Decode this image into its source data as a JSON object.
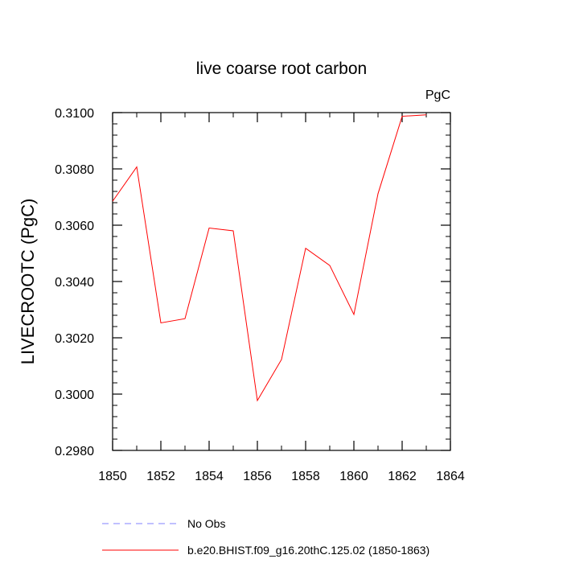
{
  "chart_data": {
    "type": "line",
    "title": "live coarse root carbon",
    "units_label": "PgC",
    "ylabel": "LIVECROOTC  (PgC)",
    "xlabel": "",
    "xlim": [
      1850,
      1864
    ],
    "ylim": [
      0.298,
      0.31
    ],
    "x_ticks": [
      1850,
      1852,
      1854,
      1856,
      1858,
      1860,
      1862,
      1864
    ],
    "x_tick_labels": [
      "1850",
      "1852",
      "1854",
      "1856",
      "1858",
      "1860",
      "1862",
      "1864"
    ],
    "y_ticks": [
      0.298,
      0.3,
      0.302,
      0.304,
      0.306,
      0.308,
      0.31
    ],
    "y_tick_labels": [
      "0.2980",
      "0.3000",
      "0.3020",
      "0.3040",
      "0.3060",
      "0.3080",
      "0.3100"
    ],
    "grid": false,
    "legend_position": "bottom",
    "series": [
      {
        "name": "b.e20.BHIST.f09_g16.20thC.125.02 (1850-1863)",
        "color": "#ff0000",
        "dash": "solid",
        "x": [
          1850,
          1851,
          1852,
          1853,
          1854,
          1855,
          1856,
          1857,
          1858,
          1859,
          1860,
          1861,
          1862,
          1863
        ],
        "values": [
          0.30685,
          0.30807,
          0.30253,
          0.30268,
          0.3059,
          0.3058,
          0.29977,
          0.30123,
          0.30518,
          0.30457,
          0.30283,
          0.30712,
          0.30987,
          0.30992
        ]
      },
      {
        "name": "No Obs",
        "color": "#8080ff",
        "dash": "dashed",
        "x": [],
        "values": []
      }
    ]
  }
}
